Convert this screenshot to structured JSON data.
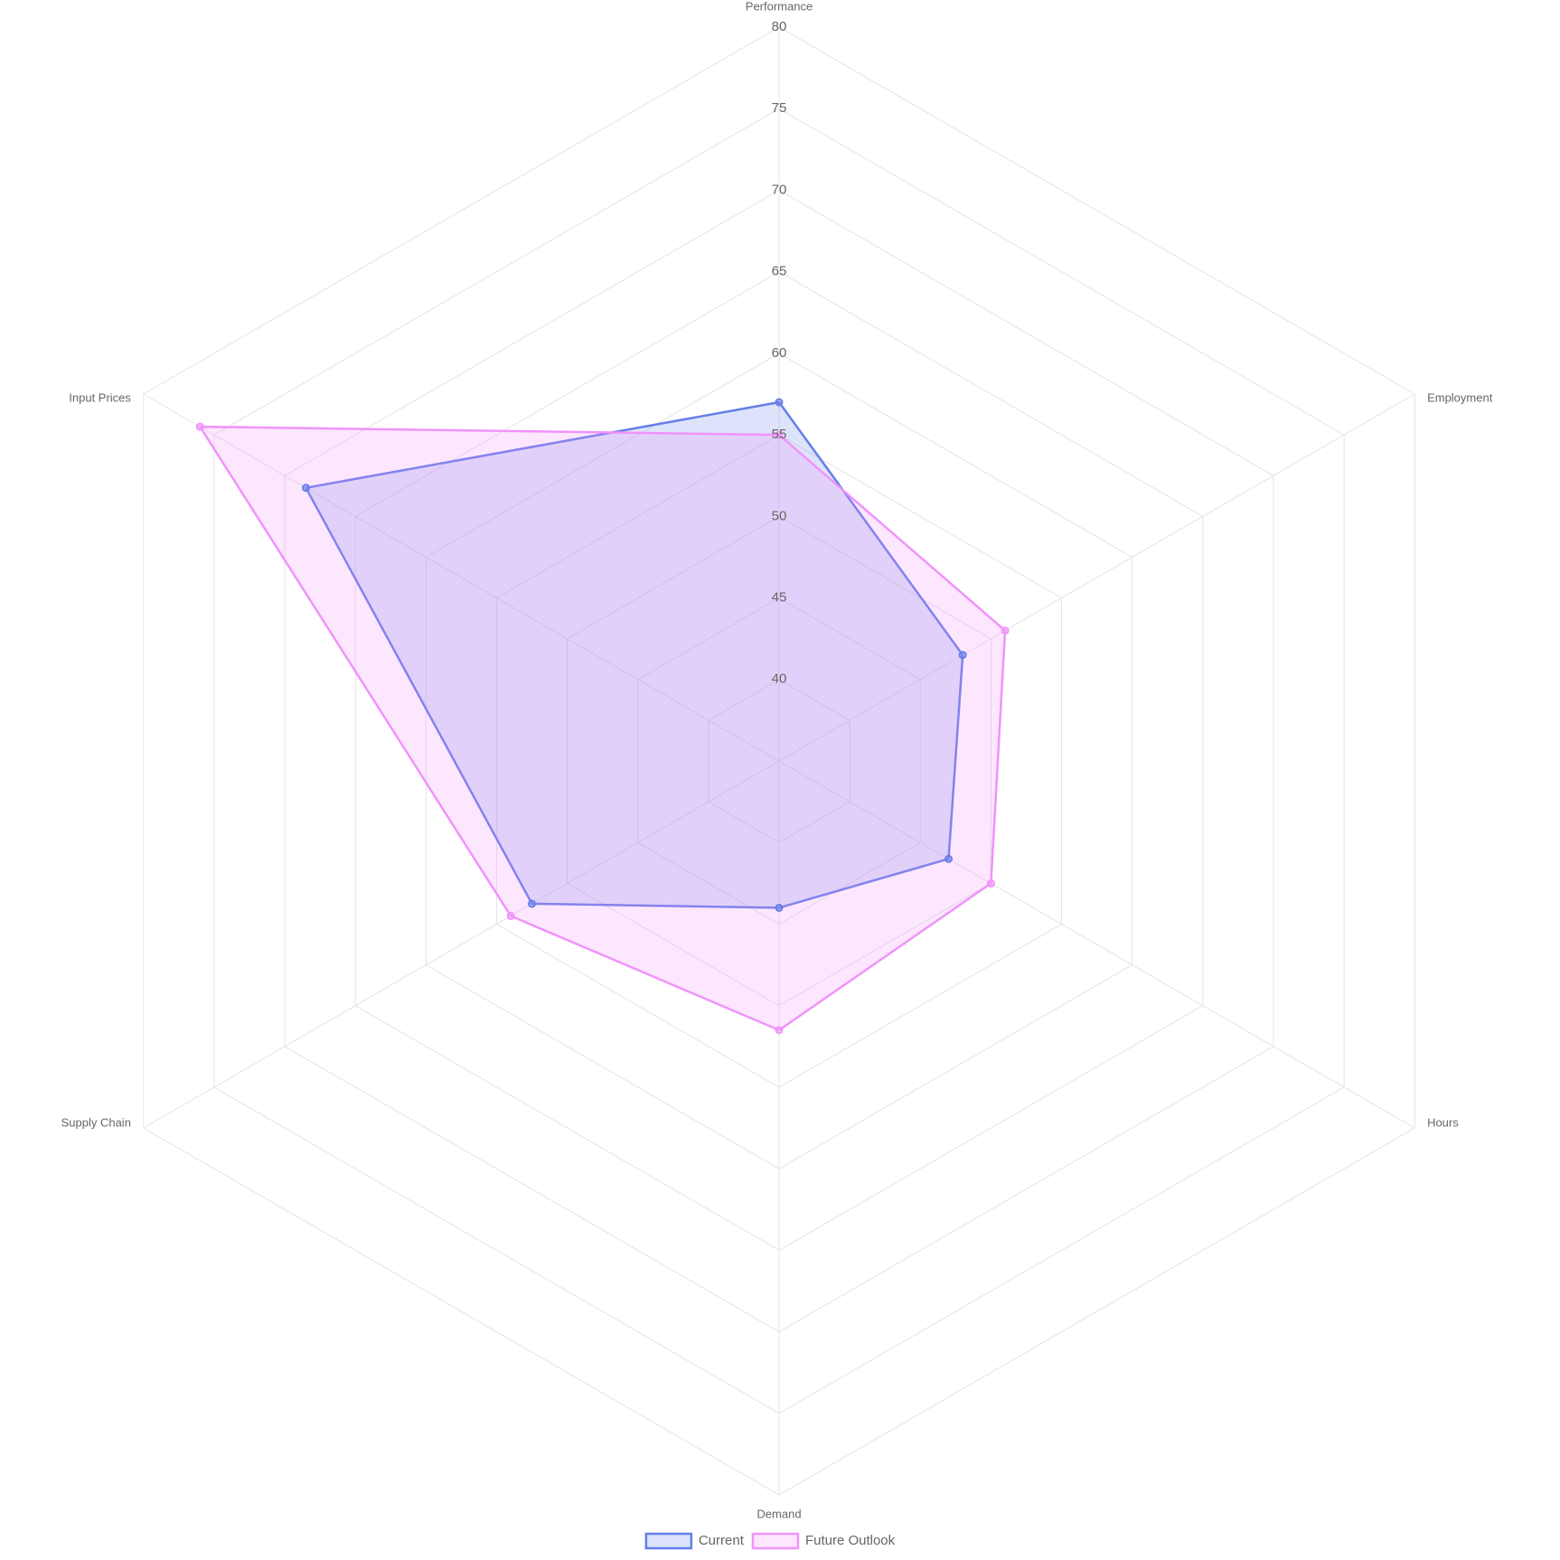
{
  "chart_data": {
    "type": "radar",
    "categories": [
      "Performance",
      "Employment",
      "Hours",
      "Demand",
      "Supply Chain",
      "Input Prices"
    ],
    "series": [
      {
        "name": "Current",
        "color": "#667eea",
        "values": [
          57,
          48,
          47,
          44,
          52.5,
          68.5
        ]
      },
      {
        "name": "Future Outlook",
        "color": "#f093fb",
        "values": [
          55,
          51,
          50,
          51.5,
          54,
          76
        ]
      }
    ],
    "rlim": [
      35,
      80
    ],
    "rticks": [
      40,
      45,
      50,
      55,
      60,
      65,
      70,
      75,
      80
    ],
    "grid": true
  }
}
